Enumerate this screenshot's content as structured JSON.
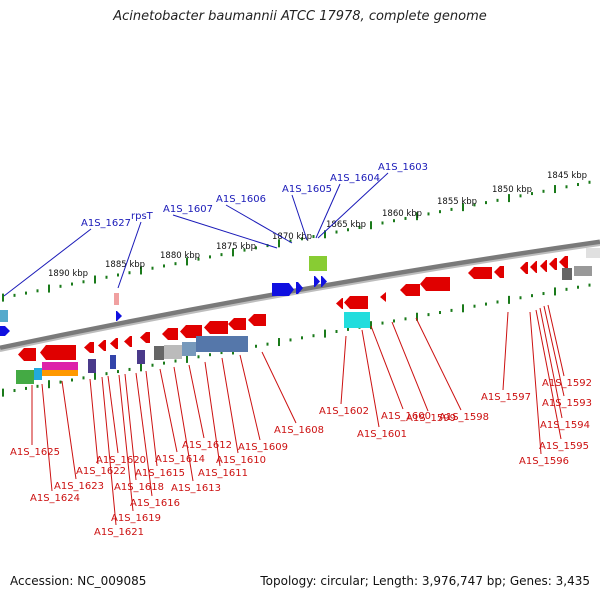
{
  "title": "Acinetobacter baumannii ATCC 17978, complete genome",
  "footer": {
    "accession": "Accession: NC_009085",
    "topology": "Topology: circular; Length: 3,976,747 bp; Genes: 3,435"
  },
  "colors": {
    "backbone": "#808080",
    "forward_gene": "#1010e0",
    "reverse_gene": "#e00000",
    "forward_label": "#1a1ab8",
    "reverse_label": "#cc1111",
    "ticks": "#1a7a1a"
  },
  "kbp_labels": [
    "1845 kbp",
    "1850 kbp",
    "1855 kbp",
    "1860 kbp",
    "1865 kbp",
    "1870 kbp",
    "1875 kbp",
    "1880 kbp",
    "1885 kbp",
    "1890 kbp"
  ],
  "forward_genes": [
    "A1S_1603",
    "A1S_1604",
    "A1S_1605",
    "A1S_1606",
    "A1S_1607",
    "rpsT",
    "A1S_1627"
  ],
  "reverse_genes": [
    "A1S_1592",
    "A1S_1593",
    "A1S_1594",
    "A1S_1595",
    "A1S_1596",
    "A1S_1597",
    "A1S_1598",
    "A1S_1599",
    "A1S_1600",
    "A1S_1601",
    "A1S_1602",
    "A1S_1608",
    "A1S_1609",
    "A1S_1610",
    "A1S_1611",
    "A1S_1612",
    "A1S_1613",
    "A1S_1614",
    "A1S_1615",
    "A1S_1616",
    "A1S_1618",
    "A1S_1619",
    "A1S_1620",
    "A1S_1621",
    "A1S_1622",
    "A1S_1623",
    "A1S_1624",
    "A1S_1625"
  ]
}
